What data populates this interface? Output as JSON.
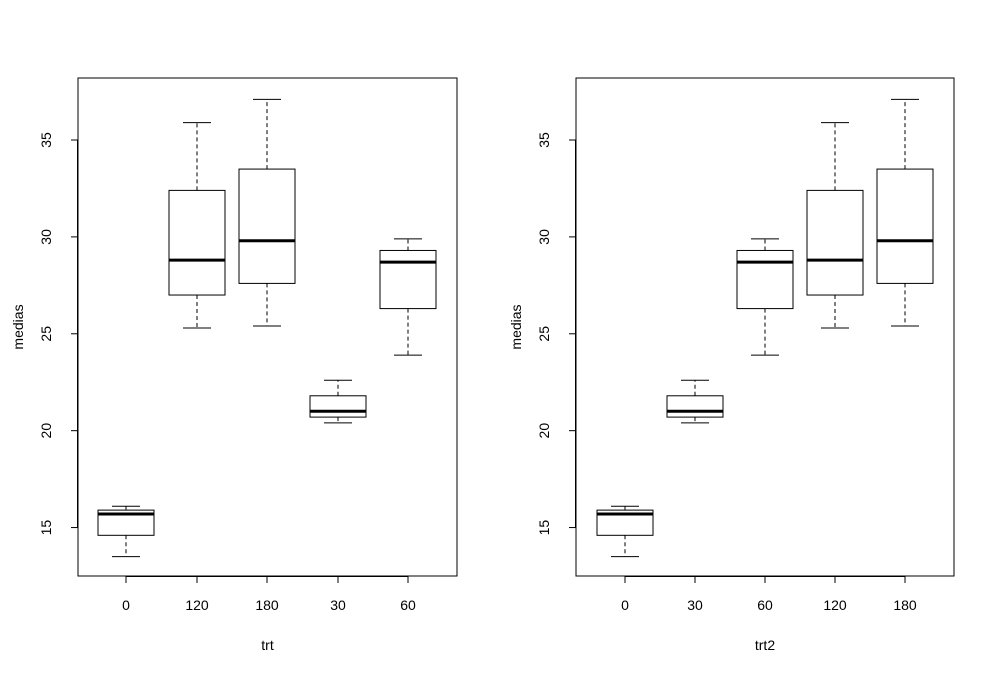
{
  "chart_data": [
    {
      "type": "boxplot",
      "xlabel": "trt",
      "ylabel": "medias",
      "categories": [
        "0",
        "120",
        "180",
        "30",
        "60"
      ],
      "ylim": [
        12.5,
        38.2
      ],
      "yticks": [
        15,
        20,
        25,
        30,
        35
      ],
      "grid": false,
      "boxes": [
        {
          "category": "0",
          "min": 13.5,
          "q1": 14.6,
          "median": 15.7,
          "q3": 15.9,
          "max": 16.1
        },
        {
          "category": "120",
          "min": 25.3,
          "q1": 27.0,
          "median": 28.8,
          "q3": 32.4,
          "max": 35.9
        },
        {
          "category": "180",
          "min": 25.4,
          "q1": 27.6,
          "median": 29.8,
          "q3": 33.5,
          "max": 37.1
        },
        {
          "category": "30",
          "min": 20.4,
          "q1": 20.7,
          "median": 21.0,
          "q3": 21.8,
          "max": 22.6
        },
        {
          "category": "60",
          "min": 23.9,
          "q1": 26.3,
          "median": 28.7,
          "q3": 29.3,
          "max": 29.9
        }
      ]
    },
    {
      "type": "boxplot",
      "xlabel": "trt2",
      "ylabel": "medias",
      "categories": [
        "0",
        "30",
        "60",
        "120",
        "180"
      ],
      "ylim": [
        12.5,
        38.2
      ],
      "yticks": [
        15,
        20,
        25,
        30,
        35
      ],
      "grid": false,
      "boxes": [
        {
          "category": "0",
          "min": 13.5,
          "q1": 14.6,
          "median": 15.7,
          "q3": 15.9,
          "max": 16.1
        },
        {
          "category": "30",
          "min": 20.4,
          "q1": 20.7,
          "median": 21.0,
          "q3": 21.8,
          "max": 22.6
        },
        {
          "category": "60",
          "min": 23.9,
          "q1": 26.3,
          "median": 28.7,
          "q3": 29.3,
          "max": 29.9
        },
        {
          "category": "120",
          "min": 25.3,
          "q1": 27.0,
          "median": 28.8,
          "q3": 32.4,
          "max": 35.9
        },
        {
          "category": "180",
          "min": 25.4,
          "q1": 27.6,
          "median": 29.8,
          "q3": 33.5,
          "max": 37.1
        }
      ]
    }
  ]
}
